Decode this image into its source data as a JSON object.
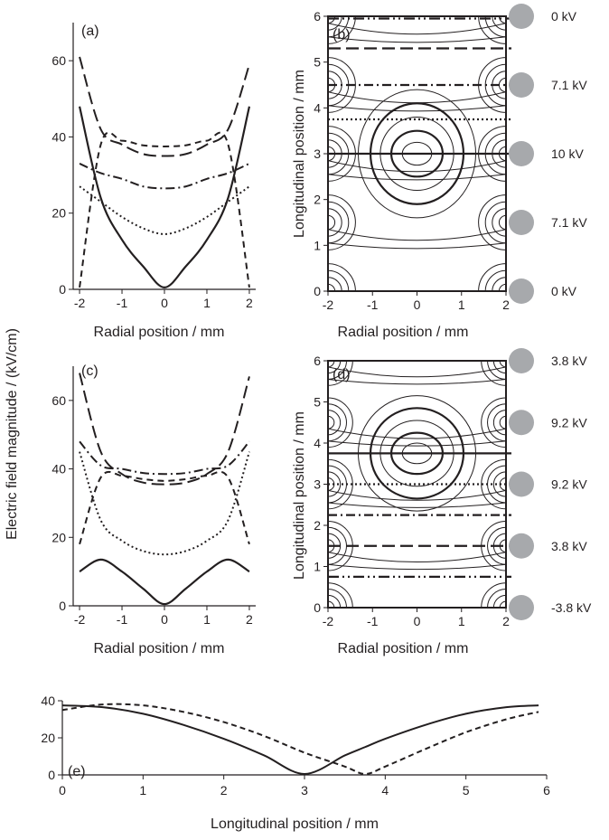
{
  "shared": {
    "ylabel_left": "Electric field magnitude / (kV/cm)",
    "radial_xlabel": "Radial position / mm",
    "longitudinal_ylabel": "Longitudinal position / mm",
    "longitudinal_xlabel": "Longitudinal position / mm"
  },
  "colors": {
    "ink": "#231f20",
    "electrode": "#a7a9ac"
  },
  "electrodes_b": [
    {
      "y": 0,
      "label": "0 kV"
    },
    {
      "y": 1.5,
      "label": "7.1 kV"
    },
    {
      "y": 3,
      "label": "10 kV"
    },
    {
      "y": 4.5,
      "label": "7.1 kV"
    },
    {
      "y": 6,
      "label": "0 kV"
    }
  ],
  "electrodes_d": [
    {
      "y": 0,
      "label": "-3.8 kV"
    },
    {
      "y": 1.5,
      "label": "3.8 kV"
    },
    {
      "y": 3,
      "label": "9.2 kV"
    },
    {
      "y": 4.5,
      "label": "9.2 kV"
    },
    {
      "y": 6,
      "label": "3.8 kV"
    }
  ],
  "chart_data": [
    {
      "panel": "(a)",
      "type": "line",
      "xlabel": "Radial position / mm",
      "xlim": [
        -2.15,
        2.15
      ],
      "ylim": [
        0,
        70
      ],
      "xticks": [
        "-2",
        "-1",
        "0",
        "1",
        "2"
      ],
      "yticks": [
        "0",
        "20",
        "40",
        "60"
      ],
      "x": [
        -2.0,
        -1.5,
        -1.0,
        -0.5,
        0.0,
        0.5,
        1.0,
        1.5,
        2.0
      ],
      "series": [
        {
          "style": "solid",
          "values": [
            48,
            24,
            13,
            6,
            0.5,
            6,
            13,
            24,
            48
          ]
        },
        {
          "style": "long-dash",
          "values": [
            61,
            42,
            38,
            35.5,
            35,
            35.5,
            38,
            42,
            59
          ]
        },
        {
          "style": "short-dash",
          "values": [
            0.5,
            38,
            39,
            37.8,
            37.5,
            37.8,
            39,
            38,
            0.5
          ]
        },
        {
          "style": "dash-dot",
          "values": [
            33,
            30.5,
            29,
            27,
            26.5,
            27,
            29,
            30.5,
            33
          ]
        },
        {
          "style": "dotted",
          "values": [
            27,
            23,
            19,
            16,
            14.5,
            16,
            19,
            23,
            27
          ]
        }
      ]
    },
    {
      "panel": "(b)",
      "type": "contour",
      "xlabel": "Radial position / mm",
      "ylabel": "Longitudinal position / mm",
      "xlim": [
        -2,
        2
      ],
      "ylim": [
        0,
        6
      ],
      "xticks": [
        "-2",
        "-1",
        "0",
        "1",
        "2"
      ],
      "yticks": [
        "0",
        "1",
        "2",
        "3",
        "4",
        "5",
        "6"
      ],
      "reference_lines": [
        {
          "y": 3.0,
          "style": "solid"
        },
        {
          "y": 3.75,
          "style": "dotted"
        },
        {
          "y": 4.5,
          "style": "dash-dot"
        },
        {
          "y": 5.3,
          "style": "long-dash"
        },
        {
          "y": 5.95,
          "style": "dash-dot-dot"
        }
      ]
    },
    {
      "panel": "(c)",
      "type": "line",
      "xlabel": "Radial position / mm",
      "xlim": [
        -2.15,
        2.15
      ],
      "ylim": [
        0,
        70
      ],
      "xticks": [
        "-2",
        "-1",
        "0",
        "1",
        "2"
      ],
      "yticks": [
        "0",
        "20",
        "40",
        "60"
      ],
      "x": [
        -2.0,
        -1.5,
        -1.0,
        -0.5,
        0.0,
        0.5,
        1.0,
        1.5,
        2.0
      ],
      "series": [
        {
          "style": "solid",
          "values": [
            10,
            13.5,
            10,
            5,
            0.5,
            5,
            10,
            13.5,
            10
          ]
        },
        {
          "style": "long-dash",
          "values": [
            68,
            45,
            38.5,
            36,
            35.5,
            36,
            38.5,
            45,
            67
          ]
        },
        {
          "style": "short-dash",
          "values": [
            18,
            37.5,
            38,
            37,
            36.5,
            37,
            38,
            37.5,
            18
          ]
        },
        {
          "style": "dash-dot",
          "values": [
            48,
            41,
            40,
            38.8,
            38.5,
            38.8,
            40,
            41,
            48
          ]
        },
        {
          "style": "dotted",
          "values": [
            45,
            25,
            19,
            16,
            15,
            16,
            19,
            25,
            45
          ]
        }
      ]
    },
    {
      "panel": "(d)",
      "type": "contour",
      "xlabel": "Radial position / mm",
      "ylabel": "Longitudinal position / mm",
      "xlim": [
        -2,
        2
      ],
      "ylim": [
        0,
        6
      ],
      "xticks": [
        "-2",
        "-1",
        "0",
        "1",
        "2"
      ],
      "yticks": [
        "0",
        "1",
        "2",
        "3",
        "4",
        "5",
        "6"
      ],
      "reference_lines": [
        {
          "y": 3.75,
          "style": "solid"
        },
        {
          "y": 3.0,
          "style": "dotted"
        },
        {
          "y": 2.25,
          "style": "dash-dot"
        },
        {
          "y": 1.5,
          "style": "long-dash"
        },
        {
          "y": 0.75,
          "style": "dash-dot-dot"
        }
      ]
    },
    {
      "panel": "(e)",
      "type": "line",
      "xlabel": "Longitudinal position / mm",
      "xlim": [
        0,
        6
      ],
      "ylim": [
        0,
        40
      ],
      "xticks": [
        "0",
        "1",
        "2",
        "3",
        "4",
        "5",
        "6"
      ],
      "yticks": [
        "0",
        "20",
        "40"
      ],
      "x": [
        0,
        0.5,
        1,
        1.5,
        2,
        2.5,
        3,
        3.5,
        3.75,
        4,
        4.5,
        5,
        5.5,
        5.9
      ],
      "series": [
        {
          "style": "solid",
          "values": [
            37.5,
            36.5,
            33,
            27,
            19.5,
            10.5,
            0.5,
            10.5,
            15,
            19.5,
            27,
            33,
            36.5,
            37.5
          ]
        },
        {
          "style": "dashed",
          "values": [
            35,
            38,
            37.5,
            34,
            28.5,
            21,
            12,
            4.5,
            0.5,
            4.5,
            14,
            23,
            30,
            34
          ]
        }
      ]
    }
  ]
}
